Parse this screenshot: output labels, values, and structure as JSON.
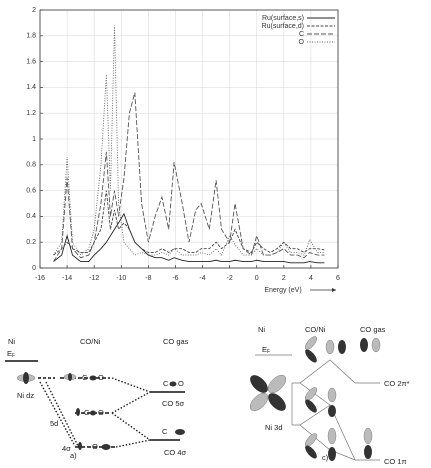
{
  "chart_data": {
    "type": "line",
    "xlabel": "Energy (eV)",
    "x": [
      -15,
      -14.4,
      -14,
      -13.6,
      -13,
      -12.4,
      -12,
      -11.5,
      -11.1,
      -10.8,
      -10.5,
      -10.2,
      -9.8,
      -9.4,
      -9,
      -8.5,
      -8,
      -7.5,
      -7,
      -6.5,
      -6.1,
      -5.5,
      -5,
      -4.5,
      -4.1,
      -3.5,
      -3,
      -2.6,
      -2,
      -1.6,
      -1,
      -0.4,
      0,
      0.5,
      1,
      1.5,
      2,
      2.5,
      3,
      3.5,
      3.9,
      4.5,
      5
    ],
    "series": [
      {
        "name": "Ru(surface,s)",
        "color": "#222222",
        "style": "solid",
        "values": [
          0.05,
          0.1,
          0.25,
          0.1,
          0.05,
          0.05,
          0.1,
          0.15,
          0.2,
          0.25,
          0.3,
          0.35,
          0.42,
          0.3,
          0.2,
          0.15,
          0.1,
          0.08,
          0.08,
          0.06,
          0.08,
          0.06,
          0.05,
          0.05,
          0.05,
          0.05,
          0.06,
          0.05,
          0.05,
          0.06,
          0.05,
          0.05,
          0.06,
          0.05,
          0.05,
          0.05,
          0.05,
          0.04,
          0.04,
          0.04,
          0.05,
          0.04,
          0.04
        ]
      },
      {
        "name": "Ru(surface,d)",
        "color": "#444444",
        "style": "dashed",
        "values": [
          0.1,
          0.15,
          0.2,
          0.15,
          0.12,
          0.12,
          0.2,
          0.3,
          0.6,
          0.3,
          0.45,
          0.3,
          0.35,
          0.3,
          0.2,
          0.15,
          0.12,
          0.12,
          0.15,
          0.12,
          0.15,
          0.15,
          0.12,
          0.12,
          0.15,
          0.15,
          0.2,
          0.15,
          0.2,
          0.3,
          0.15,
          0.12,
          0.2,
          0.15,
          0.12,
          0.15,
          0.2,
          0.15,
          0.15,
          0.12,
          0.15,
          0.15,
          0.14
        ]
      },
      {
        "name": "C",
        "color": "#555555",
        "style": "longdash",
        "values": [
          0.05,
          0.15,
          0.7,
          0.15,
          0.08,
          0.1,
          0.2,
          0.5,
          0.9,
          0.4,
          0.6,
          0.4,
          0.7,
          1.2,
          1.36,
          0.5,
          0.2,
          0.4,
          0.55,
          0.3,
          0.82,
          0.5,
          0.2,
          0.45,
          0.5,
          0.3,
          0.68,
          0.3,
          0.2,
          0.5,
          0.15,
          0.1,
          0.25,
          0.1,
          0.1,
          0.12,
          0.15,
          0.1,
          0.1,
          0.08,
          0.12,
          0.1,
          0.1
        ]
      },
      {
        "name": "O",
        "color": "#666666",
        "style": "dotted",
        "values": [
          0.1,
          0.2,
          0.86,
          0.2,
          0.1,
          0.15,
          0.3,
          0.8,
          1.5,
          0.6,
          1.88,
          0.5,
          0.2,
          0.15,
          0.1,
          0.12,
          0.1,
          0.1,
          0.12,
          0.1,
          0.15,
          0.1,
          0.1,
          0.1,
          0.12,
          0.1,
          0.15,
          0.1,
          0.25,
          0.18,
          0.1,
          0.1,
          0.15,
          0.1,
          0.1,
          0.12,
          0.2,
          0.12,
          0.12,
          0.1,
          0.22,
          0.12,
          0.12
        ]
      }
    ],
    "xlim": [
      -16,
      6
    ],
    "ylim": [
      0,
      2
    ],
    "xticks": [
      -16,
      -14,
      -12,
      -10,
      -8,
      -6,
      -4,
      -2,
      0,
      2,
      4,
      6
    ],
    "yticks": [
      0,
      0.2,
      0.4,
      0.6,
      0.8,
      1,
      1.2,
      1.4,
      1.6,
      1.8,
      2
    ],
    "grid": true,
    "legend": "upper right"
  },
  "diagram_a": {
    "label": "a)",
    "columns": [
      "Ni",
      "CO/Ni",
      "CO gas"
    ],
    "fermi": {
      "main": "E",
      "sub": "F"
    },
    "ni_level": "Ni dz",
    "levels": [
      "5d",
      "4σ",
      "CO 5σ",
      "CO 4σ"
    ],
    "atoms": [
      "C",
      "O"
    ]
  },
  "diagram_c": {
    "label": "c)",
    "columns": [
      "Ni",
      "CO/Ni",
      "CO gas"
    ],
    "fermi": {
      "main": "E",
      "sub": "F"
    },
    "ni_level": "Ni 3d",
    "levels": [
      "CO 2π*",
      "CO 1π"
    ]
  }
}
